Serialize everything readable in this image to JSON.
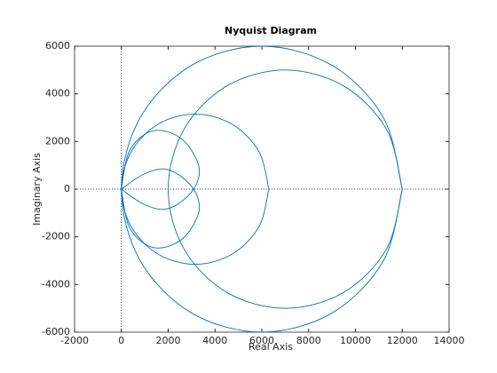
{
  "chart_data": {
    "type": "line",
    "title": "Nyquist Diagram",
    "xlabel": "Real Axis",
    "ylabel": "Imaginary Axis",
    "color": "#0072bd",
    "xlim": [
      -2000,
      14000
    ],
    "ylim": [
      -6000,
      6000
    ],
    "xticks": [
      -2000,
      0,
      2000,
      4000,
      6000,
      8000,
      10000,
      12000,
      14000
    ],
    "yticks": [
      -6000,
      -4000,
      -2000,
      0,
      2000,
      4000,
      6000
    ],
    "series": [
      {
        "x": [
          12000,
          11196,
          9000,
          6000,
          3000,
          804,
          0,
          804,
          3000,
          6000,
          9000,
          11196,
          12000
        ],
        "y": [
          0,
          3000,
          5196,
          6000,
          5196,
          3000,
          0,
          -3000,
          -5196,
          -6000,
          -5196,
          -3000,
          0
        ]
      },
      {
        "x": [
          6300,
          5878,
          4725,
          3150,
          1575,
          422,
          0,
          422,
          1575,
          3150,
          4725,
          5878,
          6300
        ],
        "y": [
          0,
          1575,
          2728,
          3150,
          2728,
          1575,
          0,
          -1575,
          -2728,
          -3150,
          -2728,
          -1575,
          0
        ]
      },
      {
        "x": [
          12000,
          11330,
          9500,
          7000,
          4500,
          2670,
          2000,
          2670,
          4500,
          7000,
          9500,
          11330,
          12000
        ],
        "y": [
          0,
          2500,
          4330,
          5000,
          4330,
          2500,
          0,
          -2500,
          -4330,
          -5000,
          -4330,
          -2500,
          0
        ]
      },
      {
        "x": [
          0,
          300,
          1000,
          1800,
          2700,
          3300,
          3200,
          2600,
          1800,
          900,
          0
        ],
        "y": [
          0,
          1500,
          2300,
          2450,
          2000,
          1000,
          200,
          -500,
          -850,
          -600,
          0
        ]
      },
      {
        "x": [
          0,
          300,
          1000,
          1800,
          2700,
          3300,
          3200,
          2600,
          1800,
          900,
          0
        ],
        "y": [
          0,
          -1500,
          -2300,
          -2450,
          -2000,
          -1000,
          -200,
          500,
          850,
          600,
          0
        ]
      }
    ]
  }
}
